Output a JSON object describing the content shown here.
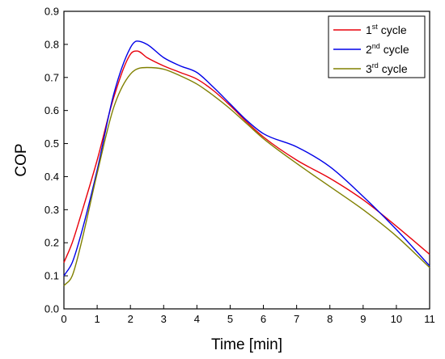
{
  "chart_data": {
    "type": "line",
    "xlabel": "Time [min]",
    "ylabel": "COP",
    "xlim": [
      0,
      11
    ],
    "ylim": [
      0,
      0.9
    ],
    "x_ticks": [
      "0",
      "1",
      "2",
      "3",
      "4",
      "5",
      "6",
      "7",
      "8",
      "9",
      "10",
      "11"
    ],
    "y_ticks": [
      "0.0",
      "0.1",
      "0.2",
      "0.3",
      "0.4",
      "0.5",
      "0.6",
      "0.7",
      "0.8",
      "0.9"
    ],
    "grid": false,
    "legend_position": "top-right",
    "series": [
      {
        "name": "1st cycle",
        "label_base": "1",
        "label_sup": "st",
        "label_rest": " cycle",
        "color": "#e8000b",
        "x": [
          0,
          0.25,
          0.5,
          1,
          1.5,
          2,
          2.2,
          2.5,
          3,
          3.5,
          4,
          4.5,
          5,
          5.5,
          6,
          7,
          8,
          9,
          10,
          11
        ],
        "y": [
          0.14,
          0.2,
          0.28,
          0.45,
          0.64,
          0.77,
          0.78,
          0.76,
          0.735,
          0.715,
          0.695,
          0.66,
          0.615,
          0.565,
          0.52,
          0.45,
          0.395,
          0.33,
          0.25,
          0.165
        ]
      },
      {
        "name": "2nd cycle",
        "label_base": "2",
        "label_sup": "nd",
        "label_rest": " cycle",
        "color": "#0000e8",
        "x": [
          0,
          0.25,
          0.5,
          1,
          1.5,
          2,
          2.2,
          2.5,
          3,
          3.5,
          4,
          4.5,
          5,
          5.5,
          6,
          7,
          8,
          9,
          10,
          11
        ],
        "y": [
          0.1,
          0.14,
          0.22,
          0.42,
          0.65,
          0.79,
          0.81,
          0.8,
          0.76,
          0.735,
          0.715,
          0.67,
          0.62,
          0.57,
          0.53,
          0.49,
          0.43,
          0.34,
          0.24,
          0.13
        ]
      },
      {
        "name": "3rd cycle",
        "label_base": "3",
        "label_sup": "rd",
        "label_rest": " cycle",
        "color": "#808000",
        "x": [
          0,
          0.25,
          0.5,
          1,
          1.5,
          2,
          2.5,
          3,
          3.5,
          4,
          4.5,
          5,
          5.5,
          6,
          7,
          8,
          9,
          10,
          11
        ],
        "y": [
          0.07,
          0.1,
          0.19,
          0.41,
          0.61,
          0.71,
          0.73,
          0.725,
          0.705,
          0.68,
          0.645,
          0.605,
          0.56,
          0.515,
          0.44,
          0.37,
          0.3,
          0.22,
          0.125
        ]
      }
    ]
  }
}
